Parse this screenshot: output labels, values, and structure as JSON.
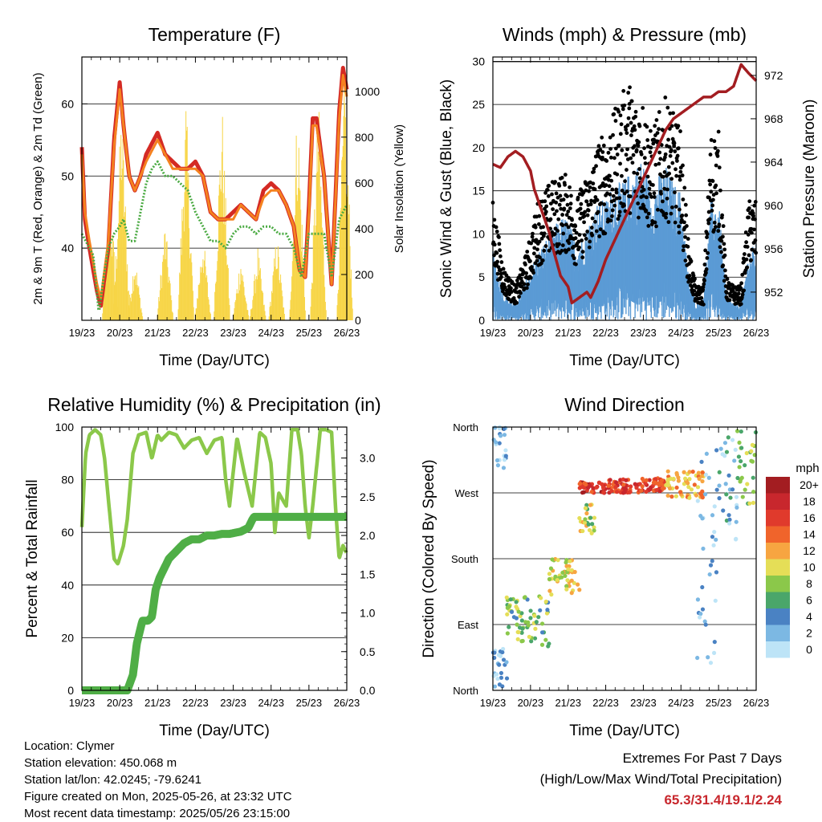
{
  "footer": {
    "location": "Location: Clymer",
    "elevation": "Station elevation: 450.068 m",
    "latlon": "Station lat/lon: 42.0245; -79.6241",
    "created": "Figure created on Mon, 2025-05-26, at 23:32 UTC",
    "recent": "Most recent data timestamp: 2025/05/26 23:15:00"
  },
  "extremes": {
    "line1": "Extremes For Past 7 Days",
    "line2": "(High/Low/Max Wind/Total Precipitation)",
    "values": "65.3/31.4/19.1/2.24",
    "color": "#c8272d"
  },
  "chart_data": [
    {
      "id": "temperature",
      "type": "line",
      "title": "Temperature (F)",
      "xlabel": "Time (Day/UTC)",
      "ylabel": "2m & 9m T (Red, Orange) & 2m Td (Green)",
      "y2label": "Solar Insolation (Yellow)",
      "x_ticks": [
        "19/23",
        "20/23",
        "21/23",
        "22/23",
        "23/23",
        "24/23",
        "25/23",
        "26/23"
      ],
      "xlim": [
        0,
        7
      ],
      "ylim": [
        30,
        66.5
      ],
      "y_ticks": [
        40,
        50,
        60
      ],
      "y2lim": [
        0,
        1150
      ],
      "y2_ticks": [
        0,
        200,
        400,
        600,
        800,
        1000
      ],
      "grid": true,
      "series": [
        {
          "color": "#d42a24",
          "x": [
            0,
            0.08,
            0.2,
            0.4,
            0.5,
            0.7,
            0.85,
            1.0,
            1.1,
            1.25,
            1.4,
            1.55,
            1.7,
            1.8,
            2.0,
            2.2,
            2.4,
            2.6,
            2.8,
            3.0,
            3.2,
            3.4,
            3.6,
            3.8,
            4.0,
            4.2,
            4.4,
            4.6,
            4.8,
            5.0,
            5.2,
            5.4,
            5.6,
            5.75,
            5.9,
            6.0,
            6.1,
            6.2,
            6.4,
            6.6,
            6.8,
            6.9,
            7.0
          ],
          "values": [
            54,
            44,
            40,
            34,
            32,
            40,
            55,
            63,
            57,
            50,
            48,
            50,
            53,
            54,
            56,
            53,
            52,
            51,
            51,
            52,
            50,
            45,
            44,
            44,
            45,
            46,
            45,
            44,
            48,
            49,
            48,
            46,
            43,
            37,
            36,
            46,
            58,
            58,
            50,
            35,
            59,
            65,
            62
          ]
        },
        {
          "color": "#f5821f",
          "x": [
            0,
            0.08,
            0.2,
            0.4,
            0.5,
            0.7,
            0.85,
            1.0,
            1.1,
            1.25,
            1.4,
            1.55,
            1.7,
            1.8,
            2.0,
            2.2,
            2.4,
            2.6,
            2.8,
            3.0,
            3.2,
            3.4,
            3.6,
            3.8,
            4.0,
            4.2,
            4.4,
            4.6,
            4.8,
            5.0,
            5.2,
            5.4,
            5.6,
            5.75,
            5.9,
            6.0,
            6.1,
            6.2,
            6.4,
            6.6,
            6.8,
            6.9,
            7.0
          ],
          "values": [
            53,
            45,
            41,
            35,
            33,
            41,
            54,
            62,
            57,
            50,
            48,
            50,
            52,
            53,
            55,
            53,
            51,
            51,
            51,
            51,
            50,
            45,
            44,
            44,
            44,
            46,
            45,
            44,
            47,
            48,
            48,
            46,
            43,
            37,
            36,
            45,
            57,
            57,
            50,
            35,
            58,
            64,
            61
          ]
        },
        {
          "color": "#4aaa42",
          "x": [
            0,
            0.2,
            0.3,
            0.45,
            0.55,
            0.7,
            0.85,
            1.0,
            1.1,
            1.25,
            1.4,
            1.55,
            1.7,
            1.85,
            2.0,
            2.2,
            2.4,
            2.6,
            2.8,
            3.0,
            3.2,
            3.4,
            3.6,
            3.8,
            4.0,
            4.2,
            4.4,
            4.6,
            4.8,
            5.0,
            5.2,
            5.4,
            5.6,
            5.8,
            6.0,
            6.2,
            6.4,
            6.6,
            6.8,
            7.0
          ],
          "values": [
            42,
            40,
            39,
            31,
            35,
            40,
            42,
            43,
            44,
            41,
            41,
            45,
            49,
            51,
            52,
            50,
            50,
            49,
            48,
            45,
            43,
            41,
            41,
            40,
            42,
            43,
            43,
            42,
            43,
            43,
            42,
            42,
            40,
            36,
            42,
            42,
            42,
            36,
            44,
            46
          ]
        }
      ],
      "insolation": {
        "color": "#f7d547",
        "peaks_x": [
          0.75,
          1.05,
          1.4,
          2.2,
          2.75,
          3.2,
          3.7,
          4.2,
          4.65,
          5.15,
          5.7,
          6.25,
          6.95
        ],
        "peaks_values": [
          600,
          1000,
          300,
          450,
          1000,
          400,
          1000,
          300,
          330,
          400,
          1000,
          1000,
          1150
        ]
      }
    },
    {
      "id": "winds",
      "type": "scatter",
      "title": "Winds (mph) & Pressure (mb)",
      "xlabel": "Time (Day/UTC)",
      "ylabel": "Sonic Wind & Gust (Blue, Black)",
      "y2label": "Station Pressure (Maroon)",
      "x_ticks": [
        "19/23",
        "20/23",
        "21/23",
        "22/23",
        "23/23",
        "24/23",
        "25/23",
        "26/23"
      ],
      "xlim": [
        0,
        7
      ],
      "ylim": [
        0,
        30.5
      ],
      "y_ticks": [
        0,
        5,
        10,
        15,
        20,
        25,
        30
      ],
      "y2lim": [
        949.4,
        973.7
      ],
      "y2_ticks": [
        952,
        956,
        960,
        964,
        968,
        972
      ],
      "grid": true,
      "wind_envelope": {
        "x": [
          0,
          0.3,
          0.6,
          0.9,
          1.2,
          1.5,
          1.8,
          2.0,
          2.2,
          2.4,
          2.6,
          2.8,
          3.0,
          3.2,
          3.4,
          3.6,
          3.8,
          4.0,
          4.2,
          4.4,
          4.6,
          4.8,
          5.0,
          5.2,
          5.4,
          5.6,
          5.8,
          6.0,
          6.2,
          6.4,
          6.6,
          6.8,
          7.0
        ],
        "values": [
          8,
          3,
          2,
          5,
          8,
          10,
          12,
          12,
          9,
          10,
          12,
          14,
          14,
          16,
          16,
          17,
          18,
          19,
          15,
          17,
          18,
          16,
          15,
          5,
          2,
          3,
          14,
          14,
          3,
          2,
          2,
          8,
          9
        ]
      },
      "gust_envelope": {
        "x": [
          0,
          0.3,
          0.6,
          0.9,
          1.2,
          1.5,
          1.8,
          2.0,
          2.2,
          2.4,
          2.6,
          2.8,
          3.0,
          3.2,
          3.4,
          3.6,
          3.8,
          4.0,
          4.2,
          4.4,
          4.6,
          4.8,
          5.0,
          5.2,
          5.4,
          5.6,
          5.8,
          6.0,
          6.2,
          6.4,
          6.6,
          6.8,
          7.0
        ],
        "values": [
          14,
          6,
          4,
          8,
          14,
          16,
          17,
          17,
          14,
          16,
          18,
          21,
          22,
          24,
          26,
          28,
          26,
          26,
          22,
          24,
          26,
          24,
          22,
          9,
          4,
          4,
          22,
          22,
          5,
          4,
          4,
          14,
          14
        ]
      },
      "series": [
        {
          "name": "Station Pressure",
          "color": "#a31d21",
          "x": [
            0,
            0.2,
            0.4,
            0.6,
            0.8,
            1.0,
            1.1,
            1.3,
            1.5,
            1.6,
            1.8,
            2.0,
            2.1,
            2.3,
            2.5,
            2.6,
            2.8,
            3.0,
            3.2,
            3.4,
            3.6,
            3.8,
            4.0,
            4.2,
            4.4,
            4.6,
            4.8,
            5.0,
            5.2,
            5.4,
            5.6,
            5.8,
            6.0,
            6.2,
            6.4,
            6.5,
            6.6,
            6.8,
            7.0
          ],
          "values": [
            963.8,
            963.5,
            964.5,
            965,
            964.5,
            963.2,
            961.5,
            959.5,
            957.5,
            956,
            953.5,
            952.5,
            951,
            951.5,
            952,
            951.5,
            953,
            955,
            956.5,
            958,
            959.5,
            961,
            962.5,
            964,
            965.5,
            967,
            968,
            968.5,
            969,
            969.5,
            970,
            970,
            970.5,
            970.5,
            971,
            972,
            973,
            972.2,
            971.5
          ]
        }
      ]
    },
    {
      "id": "humidity",
      "type": "line",
      "title": "Relative Humidity (%) & Precipitation (in)",
      "xlabel": "Time (Day/UTC)",
      "ylabel": "Percent & Total Rainfall",
      "x_ticks": [
        "19/23",
        "20/23",
        "21/23",
        "22/23",
        "23/23",
        "24/23",
        "25/23",
        "26/23"
      ],
      "xlim": [
        0,
        7
      ],
      "ylim": [
        0,
        100
      ],
      "y_ticks": [
        0,
        20,
        40,
        60,
        80,
        100
      ],
      "y2lim": [
        0,
        3.4
      ],
      "y2_ticks": [
        "0.0",
        "0.5",
        "1.0",
        "1.5",
        "2.0",
        "2.5",
        "3.0"
      ],
      "grid": true,
      "series": [
        {
          "name": "Relative Humidity",
          "color": "#8bc84a",
          "x": [
            0,
            0.1,
            0.2,
            0.35,
            0.5,
            0.6,
            0.75,
            0.85,
            0.95,
            1.1,
            1.2,
            1.35,
            1.5,
            1.7,
            1.85,
            2.0,
            2.1,
            2.3,
            2.5,
            2.7,
            2.9,
            3.1,
            3.3,
            3.5,
            3.7,
            3.8,
            3.9,
            4.1,
            4.3,
            4.5,
            4.7,
            4.85,
            5.0,
            5.1,
            5.2,
            5.4,
            5.55,
            5.7,
            5.8,
            5.9,
            6.0,
            6.1,
            6.3,
            6.45,
            6.6,
            6.7,
            6.8,
            6.9,
            7.0
          ],
          "values": [
            62,
            90,
            97,
            99,
            97,
            88,
            65,
            50,
            48,
            55,
            65,
            90,
            97,
            98,
            88,
            97,
            95,
            98,
            97,
            92,
            95,
            96,
            90,
            95,
            96,
            80,
            70,
            96,
            82,
            70,
            98,
            96,
            86,
            60,
            75,
            70,
            99,
            99,
            90,
            70,
            58,
            70,
            99,
            99,
            98,
            70,
            50,
            55,
            52
          ]
        },
        {
          "name": "Total Rainfall",
          "color": "#4fae46",
          "x": [
            0,
            1.2,
            1.35,
            1.45,
            1.55,
            1.6,
            1.75,
            1.85,
            1.95,
            2.05,
            2.15,
            2.3,
            2.5,
            2.7,
            2.9,
            3.1,
            3.3,
            3.5,
            3.7,
            3.9,
            4.2,
            4.4,
            4.5,
            4.55,
            4.7,
            5.0,
            5.5,
            6.0,
            6.5,
            7.0
          ],
          "values": [
            0,
            0,
            0.2,
            0.6,
            0.8,
            0.9,
            0.9,
            0.95,
            1.3,
            1.45,
            1.55,
            1.7,
            1.8,
            1.9,
            1.95,
            1.95,
            2.0,
            2.0,
            2.02,
            2.02,
            2.05,
            2.1,
            2.2,
            2.24,
            2.24,
            2.24,
            2.24,
            2.24,
            2.24,
            2.24
          ]
        }
      ]
    },
    {
      "id": "wind_direction",
      "type": "scatter",
      "title": "Wind Direction",
      "xlabel": "Time (Day/UTC)",
      "ylabel": "Direction (Colored By Speed)",
      "x_ticks": [
        "19/23",
        "20/23",
        "21/23",
        "22/23",
        "23/23",
        "24/23",
        "25/23",
        "26/23"
      ],
      "xlim": [
        0,
        7
      ],
      "y_ticks": [
        "North",
        "East",
        "South",
        "West",
        "North"
      ],
      "ylim": [
        0,
        360
      ],
      "grid": true,
      "legend": {
        "title": "mph",
        "labels": [
          "20+",
          "18",
          "16",
          "14",
          "12",
          "10",
          "8",
          "6",
          "4",
          "2",
          "0"
        ],
        "colors": [
          "#a31d21",
          "#c8272d",
          "#e03a2c",
          "#f0642b",
          "#f7a541",
          "#e5de57",
          "#8bc84a",
          "#4aa66a",
          "#4a82c3",
          "#7cb8e3",
          "#bde4f7"
        ],
        "placement": "right"
      },
      "clusters": [
        {
          "x": [
            0,
            0.35
          ],
          "y": [
            300,
            360
          ],
          "speed": 2
        },
        {
          "x": [
            0,
            0.4
          ],
          "y": [
            0,
            60
          ],
          "speed": 2
        },
        {
          "x": [
            0.35,
            1.5
          ],
          "y": [
            60,
            130
          ],
          "speed": 7
        },
        {
          "x": [
            1.5,
            2.3
          ],
          "y": [
            130,
            180
          ],
          "speed": 10
        },
        {
          "x": [
            2.3,
            2.7
          ],
          "y": [
            210,
            260
          ],
          "speed": 9
        },
        {
          "x": [
            2.3,
            3.0
          ],
          "y": [
            270,
            285
          ],
          "speed": 17
        },
        {
          "x": [
            3.0,
            4.6
          ],
          "y": [
            270,
            290
          ],
          "speed": 16
        },
        {
          "x": [
            4.6,
            5.6
          ],
          "y": [
            260,
            300
          ],
          "speed": 12
        },
        {
          "x": [
            5.4,
            6.0
          ],
          "y": [
            30,
            330
          ],
          "speed": 2
        },
        {
          "x": [
            6.0,
            6.5
          ],
          "y": [
            200,
            350
          ],
          "speed": 3
        },
        {
          "x": [
            6.5,
            7.0
          ],
          "y": [
            250,
            360
          ],
          "speed": 8
        }
      ]
    }
  ]
}
